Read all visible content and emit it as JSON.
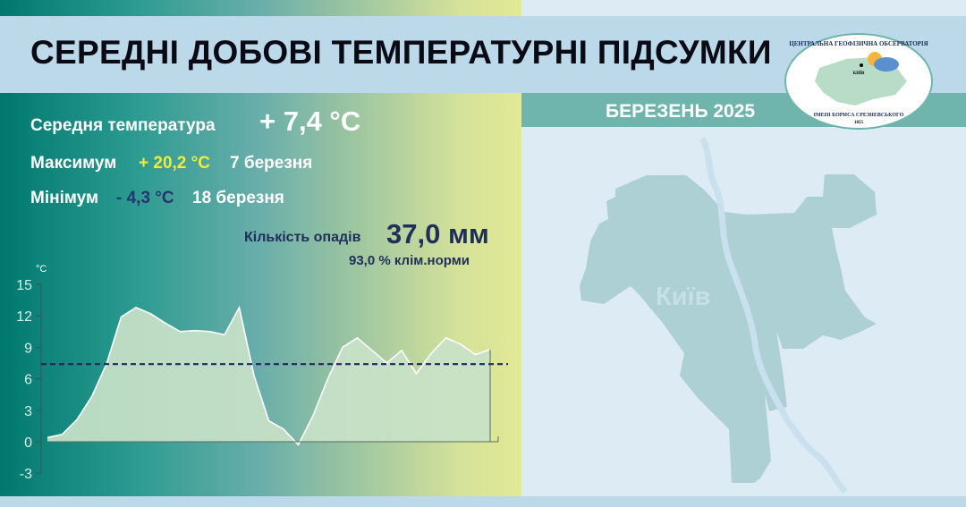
{
  "header": {
    "title": "СЕРЕДНІ ДОБОВІ ТЕМПЕРАТУРНІ ПІДСУМКИ",
    "month": "БЕРЕЗЕНЬ 2025"
  },
  "logo": {
    "top_text": "ЦЕНТРАЛЬНА ГЕОФІЗИЧНА ОБСЕРВАТОРІЯ",
    "bottom_text": "ІМЕНІ БОРИСА СРЕЗНЕВСЬКОГО",
    "year": "1855",
    "city": "КИЇВ"
  },
  "stats": {
    "mean_label": "Середня температура",
    "mean_value": "+ 7,4 °С",
    "max_label": "Максимум",
    "max_value": "+ 20,2 °С",
    "max_date": "7 березня",
    "min_label": "Мінімум",
    "min_value": "- 4,3 °С",
    "min_date": "18 березня",
    "precip_label": "Кількість опадів",
    "precip_value": "37,0 мм",
    "precip_norm": "93,0 % клім.норми"
  },
  "map": {
    "label": "Київ"
  },
  "colors": {
    "max": "#f2ea3c",
    "min": "#26356e",
    "accent": "#6fb5ad"
  },
  "chart_data": {
    "type": "area",
    "ylabel": "°С",
    "ylim": [
      -3,
      15
    ],
    "yticks": [
      "15",
      "12",
      "9",
      "6",
      "3",
      "0",
      "-3"
    ],
    "x": [
      1,
      2,
      3,
      4,
      5,
      6,
      7,
      8,
      9,
      10,
      11,
      12,
      13,
      14,
      15,
      16,
      17,
      18,
      19,
      20,
      21,
      22,
      23,
      24,
      25,
      26,
      27,
      28,
      29,
      30,
      31
    ],
    "values": [
      0.4,
      0.7,
      2.1,
      4.3,
      7.4,
      11.9,
      12.8,
      12.2,
      11.3,
      10.5,
      10.6,
      10.5,
      10.2,
      12.8,
      6.3,
      2.0,
      1.2,
      -0.3,
      2.5,
      6.0,
      9.0,
      9.9,
      8.7,
      7.5,
      8.7,
      6.5,
      8.4,
      9.9,
      9.3,
      8.3,
      8.8
    ],
    "mean_line": 7.4
  }
}
